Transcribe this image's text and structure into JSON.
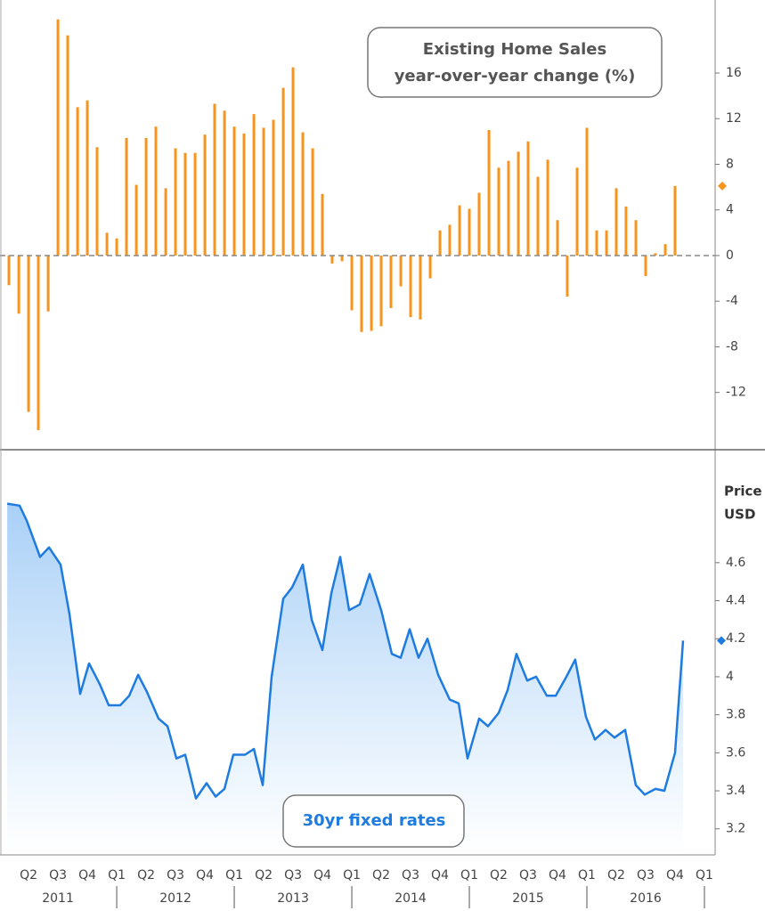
{
  "chart_data": [
    {
      "type": "bar",
      "title": "Existing Home Sales",
      "subtitle": "year-over-year change (%)",
      "color": "#f7941d",
      "x": [
        2011.208,
        2011.292,
        2011.375,
        2011.458,
        2011.542,
        2011.625,
        2011.708,
        2011.792,
        2011.875,
        2011.958,
        2012.042,
        2012.125,
        2012.208,
        2012.292,
        2012.375,
        2012.458,
        2012.542,
        2012.625,
        2012.708,
        2012.792,
        2012.875,
        2012.958,
        2013.042,
        2013.125,
        2013.208,
        2013.292,
        2013.375,
        2013.458,
        2013.542,
        2013.625,
        2013.708,
        2013.792,
        2013.875,
        2013.958,
        2014.042,
        2014.125,
        2014.208,
        2014.292,
        2014.375,
        2014.458,
        2014.542,
        2014.625,
        2014.708,
        2014.792,
        2014.875,
        2014.958,
        2015.042,
        2015.125,
        2015.208,
        2015.292,
        2015.375,
        2015.458,
        2015.542,
        2015.625,
        2015.708,
        2015.792,
        2015.875,
        2015.958,
        2016.042,
        2016.125,
        2016.208,
        2016.292,
        2016.375,
        2016.458,
        2016.542,
        2016.625,
        2016.708,
        2016.792,
        2016.875
      ],
      "values": [
        -2.6,
        -5.1,
        -13.7,
        -15.3,
        -4.9,
        20.7,
        19.3,
        13.0,
        13.6,
        9.5,
        2.0,
        1.5,
        10.3,
        6.2,
        10.3,
        11.3,
        5.9,
        9.4,
        9.0,
        9.0,
        10.6,
        13.3,
        12.7,
        11.3,
        10.7,
        12.4,
        11.2,
        11.9,
        14.7,
        16.5,
        10.8,
        9.4,
        5.4,
        -0.7,
        -0.5,
        -4.8,
        -6.7,
        -6.6,
        -6.2,
        -4.6,
        -2.7,
        -5.4,
        -5.6,
        -2.0,
        2.2,
        2.7,
        4.4,
        4.1,
        5.5,
        11.0,
        7.7,
        8.3,
        9.1,
        10.0,
        6.9,
        8.4,
        3.1,
        -3.6,
        7.7,
        11.2,
        2.2,
        2.2,
        5.9,
        4.3,
        3.1,
        -1.8,
        0.2,
        1.0,
        6.1
      ],
      "xlim": [
        2011.132,
        2017.216
      ],
      "ylim": [
        -16.63,
        22.4
      ],
      "yticks": [
        -12,
        -8,
        -4,
        0,
        4,
        8,
        12,
        16
      ],
      "reference_line": 0
    },
    {
      "type": "area",
      "title": "30yr fixed rates",
      "ylabel": "Price",
      "yunit": "USD",
      "color": "#1e7be0",
      "x": [
        2011.193,
        2011.299,
        2011.36,
        2011.473,
        2011.549,
        2011.647,
        2011.723,
        2011.814,
        2011.89,
        2011.981,
        2012.057,
        2012.155,
        2012.231,
        2012.307,
        2012.382,
        2012.481,
        2012.557,
        2012.633,
        2012.708,
        2012.799,
        2012.89,
        2012.966,
        2013.041,
        2013.117,
        2013.216,
        2013.292,
        2013.367,
        2013.443,
        2013.541,
        2013.617,
        2013.708,
        2013.784,
        2013.875,
        2013.951,
        2014.026,
        2014.102,
        2014.193,
        2014.276,
        2014.375,
        2014.466,
        2014.541,
        2014.617,
        2014.693,
        2014.769,
        2014.86,
        2014.958,
        2015.034,
        2015.11,
        2015.208,
        2015.284,
        2015.375,
        2015.451,
        2015.526,
        2015.617,
        2015.693,
        2015.784,
        2015.86,
        2015.951,
        2016.026,
        2016.117,
        2016.193,
        2016.284,
        2016.36,
        2016.451,
        2016.541,
        2016.617,
        2016.708,
        2016.784,
        2016.875,
        2016.943
      ],
      "values": [
        4.91,
        4.9,
        4.82,
        4.63,
        4.68,
        4.59,
        4.33,
        3.91,
        4.07,
        3.96,
        3.85,
        3.85,
        3.9,
        4.01,
        3.92,
        3.78,
        3.74,
        3.57,
        3.59,
        3.36,
        3.44,
        3.37,
        3.41,
        3.59,
        3.59,
        3.62,
        3.43,
        4.0,
        4.41,
        4.47,
        4.59,
        4.3,
        4.14,
        4.44,
        4.63,
        4.35,
        4.38,
        4.54,
        4.35,
        4.12,
        4.1,
        4.25,
        4.1,
        4.2,
        4.01,
        3.88,
        3.86,
        3.57,
        3.78,
        3.74,
        3.81,
        3.93,
        4.12,
        3.98,
        4.0,
        3.9,
        3.9,
        4.0,
        4.09,
        3.79,
        3.67,
        3.72,
        3.68,
        3.72,
        3.43,
        3.38,
        3.41,
        3.4,
        3.6,
        4.19
      ],
      "xlim": [
        2011.132,
        2017.216
      ],
      "ylim": [
        3.063,
        5.194
      ],
      "yticks": [
        3.2,
        3.4,
        3.6,
        3.8,
        4,
        4.2,
        4.4,
        4.6
      ],
      "xticks": [
        {
          "value": 2011.375,
          "label": "Q2"
        },
        {
          "value": 2011.625,
          "label": "Q3"
        },
        {
          "value": 2011.875,
          "label": "Q4"
        },
        {
          "value": 2012.125,
          "label": "Q1"
        },
        {
          "value": 2012.375,
          "label": "Q2"
        },
        {
          "value": 2012.625,
          "label": "Q3"
        },
        {
          "value": 2012.875,
          "label": "Q4"
        },
        {
          "value": 2013.125,
          "label": "Q1"
        },
        {
          "value": 2013.375,
          "label": "Q2"
        },
        {
          "value": 2013.625,
          "label": "Q3"
        },
        {
          "value": 2013.875,
          "label": "Q4"
        },
        {
          "value": 2014.125,
          "label": "Q1"
        },
        {
          "value": 2014.375,
          "label": "Q2"
        },
        {
          "value": 2014.625,
          "label": "Q3"
        },
        {
          "value": 2014.875,
          "label": "Q4"
        },
        {
          "value": 2015.125,
          "label": "Q1"
        },
        {
          "value": 2015.375,
          "label": "Q2"
        },
        {
          "value": 2015.625,
          "label": "Q3"
        },
        {
          "value": 2015.875,
          "label": "Q4"
        },
        {
          "value": 2016.125,
          "label": "Q1"
        },
        {
          "value": 2016.375,
          "label": "Q2"
        },
        {
          "value": 2016.625,
          "label": "Q3"
        },
        {
          "value": 2016.875,
          "label": "Q4"
        },
        {
          "value": 2017.125,
          "label": "Q1"
        }
      ],
      "year_ticks": [
        {
          "value": 2011.625,
          "label": "2011"
        },
        {
          "value": 2012.625,
          "label": "2012"
        },
        {
          "value": 2013.625,
          "label": "2013"
        },
        {
          "value": 2014.625,
          "label": "2014"
        },
        {
          "value": 2015.625,
          "label": "2015"
        },
        {
          "value": 2016.625,
          "label": "2016"
        }
      ]
    }
  ]
}
